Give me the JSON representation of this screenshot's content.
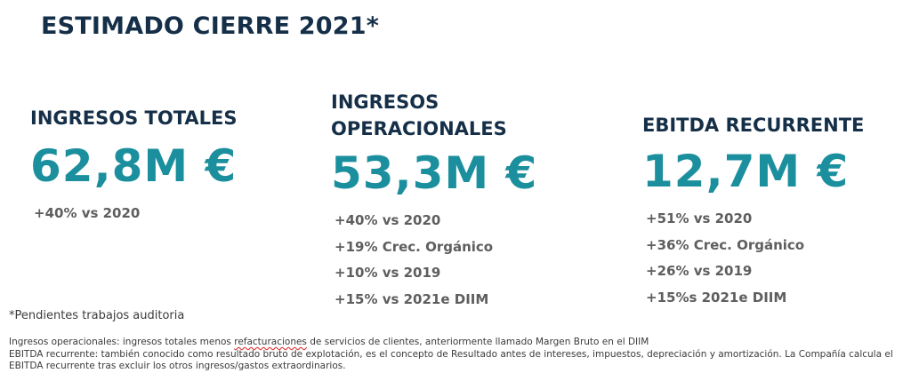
{
  "title": "ESTIMADO CIERRE 2021*",
  "columns": [
    {
      "heading": "INGRESOS TOTALES",
      "value": "62,8M €",
      "items": [
        "+40% vs 2020"
      ]
    },
    {
      "heading": "INGRESOS OPERACIONALES",
      "value": "53,3M €",
      "items": [
        "+40% vs 2020",
        "+19% Crec. Orgánico",
        "+10% vs 2019",
        "+15% vs 2021e DIIM"
      ]
    },
    {
      "heading": "EBITDA RECURRENTE",
      "value": "12,7M €",
      "items": [
        "+51% vs 2020",
        "+36% Crec. Orgánico",
        "+26% vs 2019",
        "+15%s 2021e DIIM"
      ]
    }
  ],
  "note": "*Pendientes trabajos auditoria",
  "footnotes": {
    "line1_a": "Ingresos operacionales: ingresos totales menos ",
    "line1_b": "refacturaciones",
    "line1_c": " de servicios de clientes, anteriormente llamado Margen Bruto en el DIIM",
    "line2": "EBITDA recurrente: también conocido como resultado bruto de explotación, es el concepto de Resultado antes de intereses, impuestos, depreciación y amortización. La Compañía calcula el EBITDA recurrente tras excluir los otros ingresos/gastos extraordinarios."
  },
  "colors": {
    "heading": "#152f48",
    "value": "#1b8f9d",
    "items": "#5e5e5e"
  }
}
